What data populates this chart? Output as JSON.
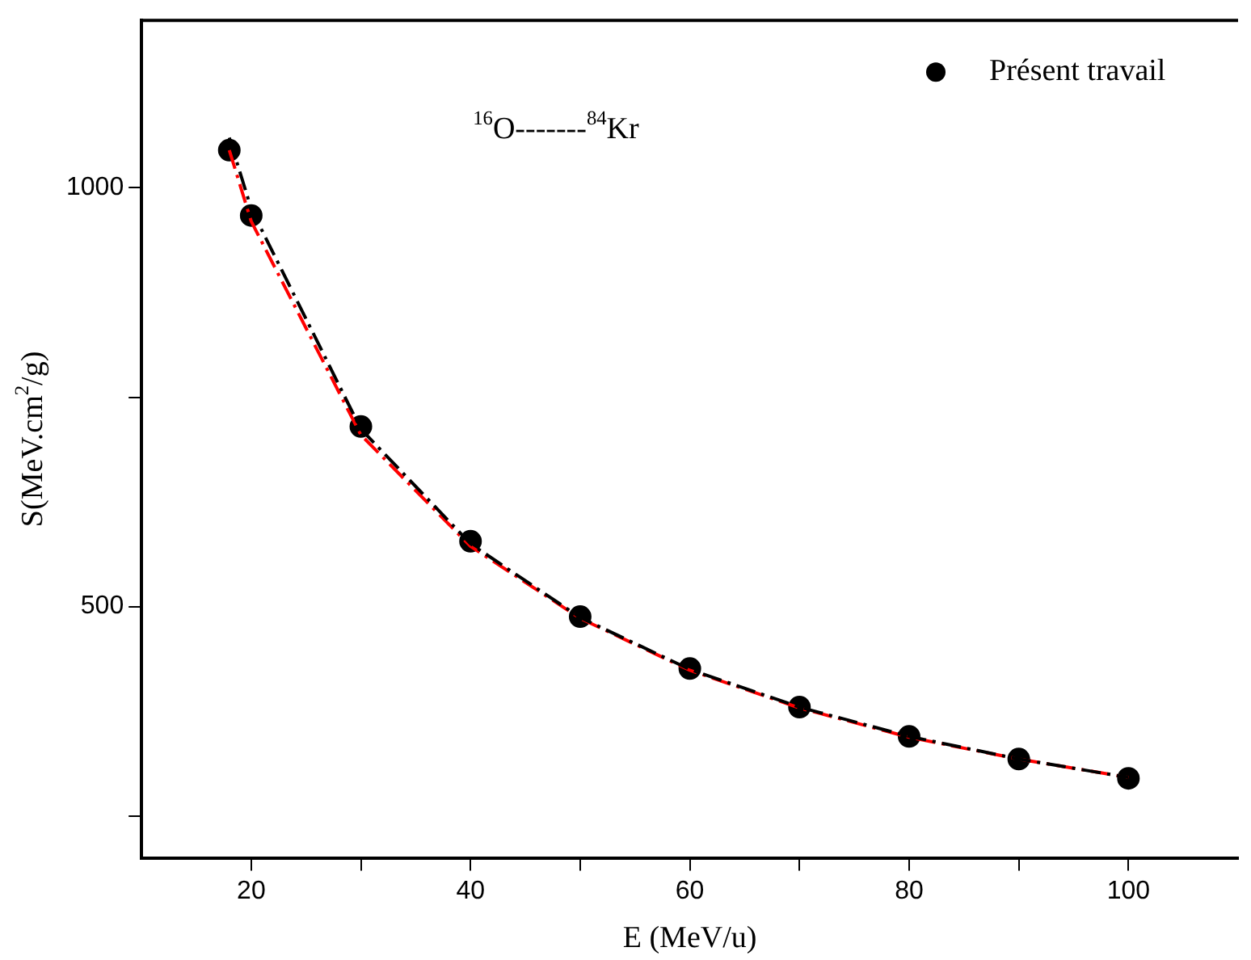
{
  "chart_data": {
    "type": "scatter",
    "xlabel": "E (MeV/u)",
    "ylabel": "S(MeV.cm$^{2}$/g)",
    "annotations": [
      "$^{16}$O-------$^{84}$Kr"
    ],
    "x": [
      18,
      20,
      30,
      40,
      50,
      60,
      70,
      80,
      90,
      100
    ],
    "series": [
      {
        "name": "Présent travail",
        "marker": "circle",
        "color": "#000000",
        "values": [
          1045,
          967,
          715,
          578,
          488,
          426,
          380,
          345,
          318,
          295
        ]
      },
      {
        "type": "line",
        "marker": "none",
        "line_style": "dashed",
        "color": "#000000",
        "values": [
          1060,
          975,
          712,
          575,
          487,
          425,
          380,
          345,
          318,
          296
        ]
      },
      {
        "type": "line",
        "marker": "none",
        "line_style": "dashed",
        "color": "#ff0000",
        "values": [
          1045,
          960,
          705,
          572,
          486,
          424,
          379,
          344,
          318,
          296
        ]
      }
    ],
    "xlim": [
      10,
      110
    ],
    "xticks": [
      20,
      {
        "value": 30,
        "label": null
      },
      40,
      {
        "value": 50,
        "label": null
      },
      60,
      {
        "value": 70,
        "label": null
      },
      80,
      {
        "value": 90,
        "label": null
      },
      100
    ],
    "ylim": [
      200,
      1200
    ],
    "yticks": [
      {
        "value": 250,
        "label": null
      },
      500,
      {
        "value": 750,
        "label": null
      },
      1000
    ],
    "legend": "top right",
    "grid": false
  }
}
